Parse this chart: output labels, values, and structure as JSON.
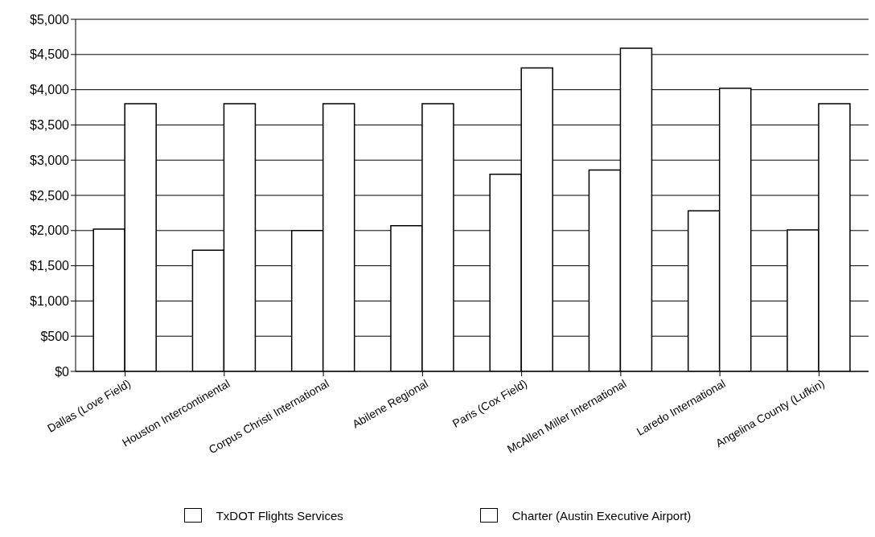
{
  "chart_data": {
    "type": "bar",
    "categories": [
      "Dallas (Love Field)",
      "Houston Intercontinental",
      "Corpus Christi International",
      "Abilene Regional",
      "Paris (Cox Field)",
      "McAllen Miller International",
      "Laredo International",
      "Angelina County (Lufkin)"
    ],
    "series": [
      {
        "name": "TxDOT Flights Services",
        "color": "#ffffff",
        "values": [
          2020,
          1720,
          2000,
          2070,
          2800,
          2860,
          2280,
          2010
        ]
      },
      {
        "name": "Charter (Austin Executive Airport)",
        "color": "#ffffff",
        "values": [
          3800,
          3800,
          3800,
          3800,
          4310,
          4590,
          4020,
          3800
        ]
      }
    ],
    "ylim": [
      0,
      5000
    ],
    "yticks": [
      {
        "value": 0,
        "label": "$0"
      },
      {
        "value": 500,
        "label": "$500"
      },
      {
        "value": 1000,
        "label": "$1,000"
      },
      {
        "value": 1500,
        "label": "$1,500"
      },
      {
        "value": 2000,
        "label": "$2,000"
      },
      {
        "value": 2500,
        "label": "$2,500"
      },
      {
        "value": 3000,
        "label": "$3,000"
      },
      {
        "value": 3500,
        "label": "$3,500"
      },
      {
        "value": 4000,
        "label": "$4,000"
      },
      {
        "value": 4500,
        "label": "$4,500"
      },
      {
        "value": 5000,
        "label": "$5,000"
      }
    ],
    "grid": "y",
    "legend": "bottom"
  }
}
